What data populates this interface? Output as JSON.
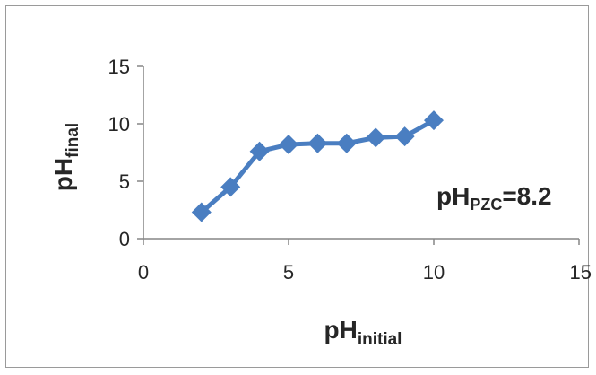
{
  "chart_data": {
    "type": "line",
    "x": [
      2,
      3,
      4,
      5,
      6,
      7,
      8,
      9,
      10
    ],
    "series": [
      {
        "values": [
          2.3,
          4.5,
          7.6,
          8.2,
          8.3,
          8.3,
          8.8,
          8.9,
          10.3
        ],
        "color": "#4a7ec1",
        "marker": "diamond"
      }
    ],
    "xlim": [
      0,
      15
    ],
    "ylim": [
      0,
      15
    ],
    "x_ticks": [
      "0",
      "5",
      "10",
      "15"
    ],
    "y_ticks": [
      "0",
      "5",
      "10",
      "15"
    ],
    "xlabel": {
      "main": "pH",
      "sub": "initial"
    },
    "ylabel": {
      "main": "pH",
      "sub": "final"
    },
    "annotation": {
      "main": "pH",
      "sub": "PZC",
      "value": "=8.2"
    },
    "grid": false,
    "legend": "none"
  }
}
